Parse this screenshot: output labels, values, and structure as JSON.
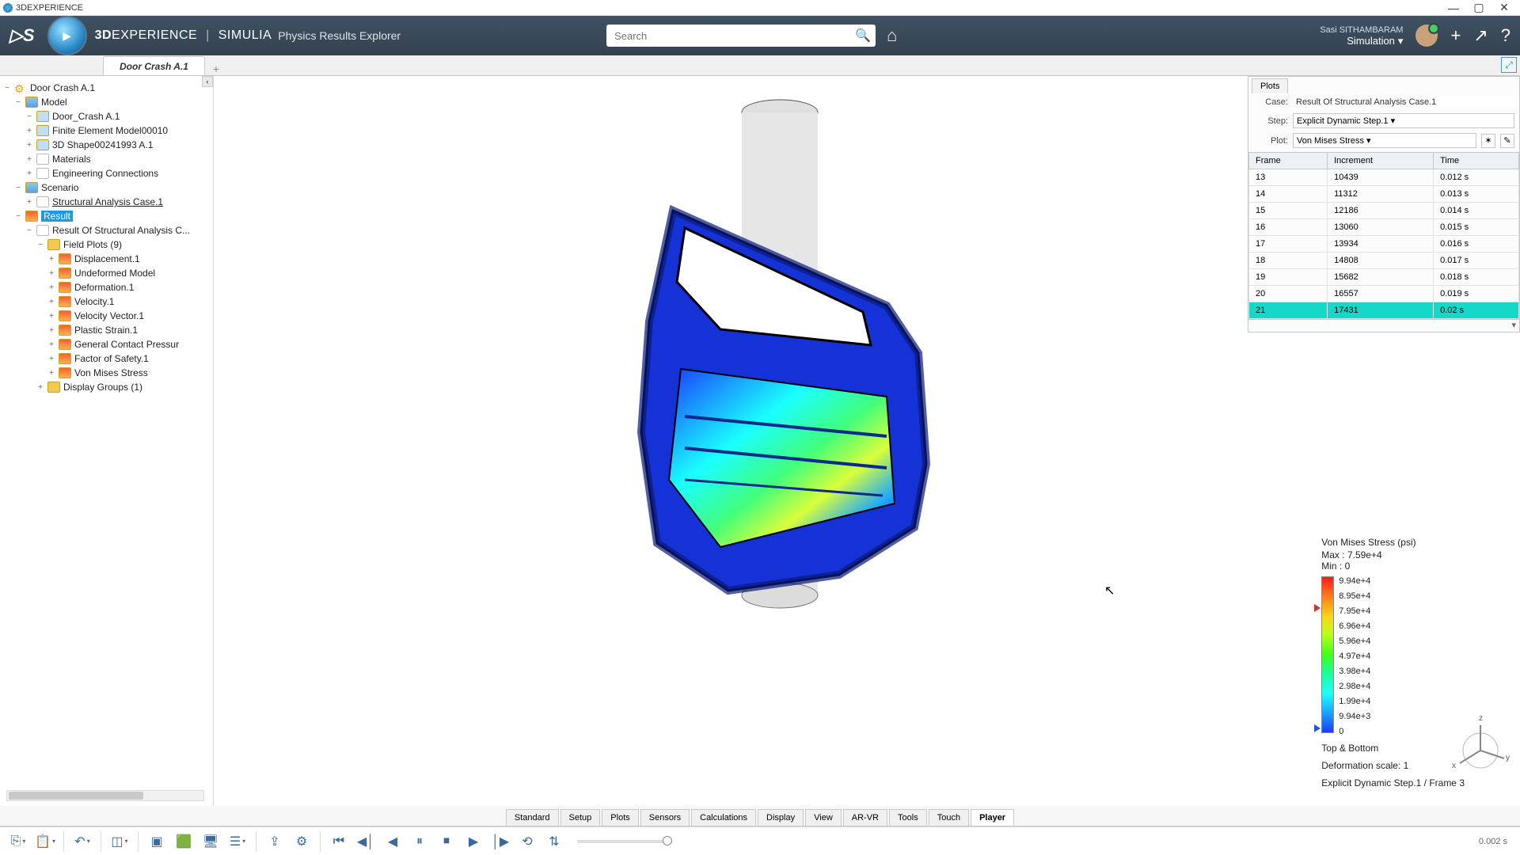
{
  "titlebar": {
    "app": "3DEXPERIENCE"
  },
  "header": {
    "brand_a": "3D",
    "brand_b": "EXPERIENCE",
    "brand_c": "SIMULIA",
    "subtitle": "Physics Results Explorer",
    "search_placeholder": "Search",
    "user_name": "Sasi SITHAMBARAM",
    "user_role": "Simulation"
  },
  "tabs": {
    "active": "Door Crash A.1"
  },
  "tree": {
    "root": "Door Crash A.1",
    "model": "Model",
    "model_children": [
      "Door_Crash A.1",
      "Finite Element Model00010",
      "3D Shape00241993 A.1",
      "Materials",
      "Engineering Connections"
    ],
    "scenario": "Scenario",
    "scenario_children": [
      "Structural Analysis Case.1"
    ],
    "result": "Result",
    "result_case": "Result Of Structural Analysis C...",
    "field_plots": "Field Plots (9)",
    "plots": [
      "Displacement.1",
      "Undeformed Model",
      "Deformation.1",
      "Velocity.1",
      "Velocity Vector.1",
      "Plastic Strain.1",
      "General Contact Pressur",
      "Factor of Safety.1",
      "Von Mises Stress"
    ],
    "display_groups": "Display Groups (1)"
  },
  "plots_panel": {
    "tab": "Plots",
    "case_label": "Case:",
    "case": "Result Of Structural Analysis Case.1",
    "step_label": "Step:",
    "step": "Explicit Dynamic Step.1",
    "plot_label": "Plot:",
    "plot": "Von Mises Stress",
    "columns": [
      "Frame",
      "Increment",
      "Time"
    ],
    "rows": [
      [
        "13",
        "10439",
        "0.012 s"
      ],
      [
        "14",
        "11312",
        "0.013 s"
      ],
      [
        "15",
        "12186",
        "0.014 s"
      ],
      [
        "16",
        "13060",
        "0.015 s"
      ],
      [
        "17",
        "13934",
        "0.016 s"
      ],
      [
        "18",
        "14808",
        "0.017 s"
      ],
      [
        "19",
        "15682",
        "0.018 s"
      ],
      [
        "20",
        "16557",
        "0.019 s"
      ],
      [
        "21",
        "17431",
        "0.02 s"
      ]
    ],
    "selected_index": 8
  },
  "legend": {
    "title": "Von Mises Stress (psi)",
    "max": "Max : 7.59e+4",
    "min": "Min : 0",
    "ticks": [
      "9.94e+4",
      "8.95e+4",
      "7.95e+4",
      "6.96e+4",
      "5.96e+4",
      "4.97e+4",
      "3.98e+4",
      "2.98e+4",
      "1.99e+4",
      "9.94e+3",
      "0"
    ],
    "foot1": "Top & Bottom",
    "foot2": "Deformation scale: 1",
    "foot3": "Explicit Dynamic Step.1 / Frame 3"
  },
  "btabs": [
    "Standard",
    "Setup",
    "Plots",
    "Sensors",
    "Calculations",
    "Display",
    "View",
    "AR-VR",
    "Tools",
    "Touch",
    "Player"
  ],
  "btabs_active": "Player",
  "toolbar": {
    "time": "0.002 s"
  },
  "triad": {
    "x": "x",
    "y": "y",
    "z": "z"
  }
}
